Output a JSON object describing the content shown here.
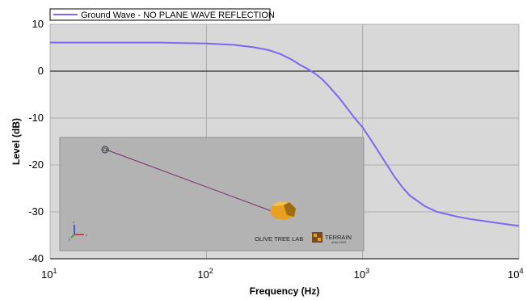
{
  "chart_data": {
    "type": "line",
    "title": "",
    "xlabel": "Frequency (Hz)",
    "ylabel": "Level (dB)",
    "x_scale": "log",
    "xlim": [
      10,
      10000
    ],
    "ylim": [
      -40,
      10
    ],
    "x_ticks": [
      {
        "value": 10,
        "base": "10",
        "exp": "1"
      },
      {
        "value": 100,
        "base": "10",
        "exp": "2"
      },
      {
        "value": 1000,
        "base": "10",
        "exp": "3"
      },
      {
        "value": 10000,
        "base": "10",
        "exp": "4"
      }
    ],
    "y_ticks": [
      10,
      0,
      -10,
      -20,
      -30,
      -40
    ],
    "grid": true,
    "legend_position": "top-left",
    "series": [
      {
        "name": "Ground Wave  - NO PLANE WAVE REFLECTION",
        "color": "#7b68ee",
        "x": [
          10,
          20,
          50,
          70,
          100,
          150,
          200,
          250,
          300,
          350,
          400,
          450,
          500,
          550,
          600,
          700,
          800,
          900,
          1000,
          1200,
          1400,
          1600,
          1800,
          2000,
          2500,
          3000,
          4000,
          5000,
          7000,
          10000
        ],
        "y": [
          6.1,
          6.1,
          6.1,
          6.0,
          5.9,
          5.6,
          5.1,
          4.5,
          3.6,
          2.5,
          1.3,
          0.4,
          -0.6,
          -1.7,
          -3.0,
          -5.5,
          -8.0,
          -10.2,
          -12.0,
          -16.0,
          -19.5,
          -22.5,
          -24.8,
          -26.5,
          -28.8,
          -30.0,
          -31.0,
          -31.6,
          -32.3,
          -33.0
        ]
      }
    ],
    "zero_line": 0
  },
  "inset": {
    "brand_left": "OLIVE TREE LAB",
    "brand_right": "TERRAIN",
    "brand_sub": "ANALYSER",
    "axis_z": "z",
    "axis_x": "x",
    "axis_y": "y"
  },
  "colors": {
    "plot_bg": "#d8d8d8",
    "inset_bg": "#b3b3b3",
    "grid": "#a0a0a0",
    "path_line": "#7a2a6e",
    "receiver": "#e8a020"
  },
  "icons": [
    "source-icon",
    "receiver-icon",
    "axes-gizmo-icon",
    "brand-logo-icon"
  ]
}
